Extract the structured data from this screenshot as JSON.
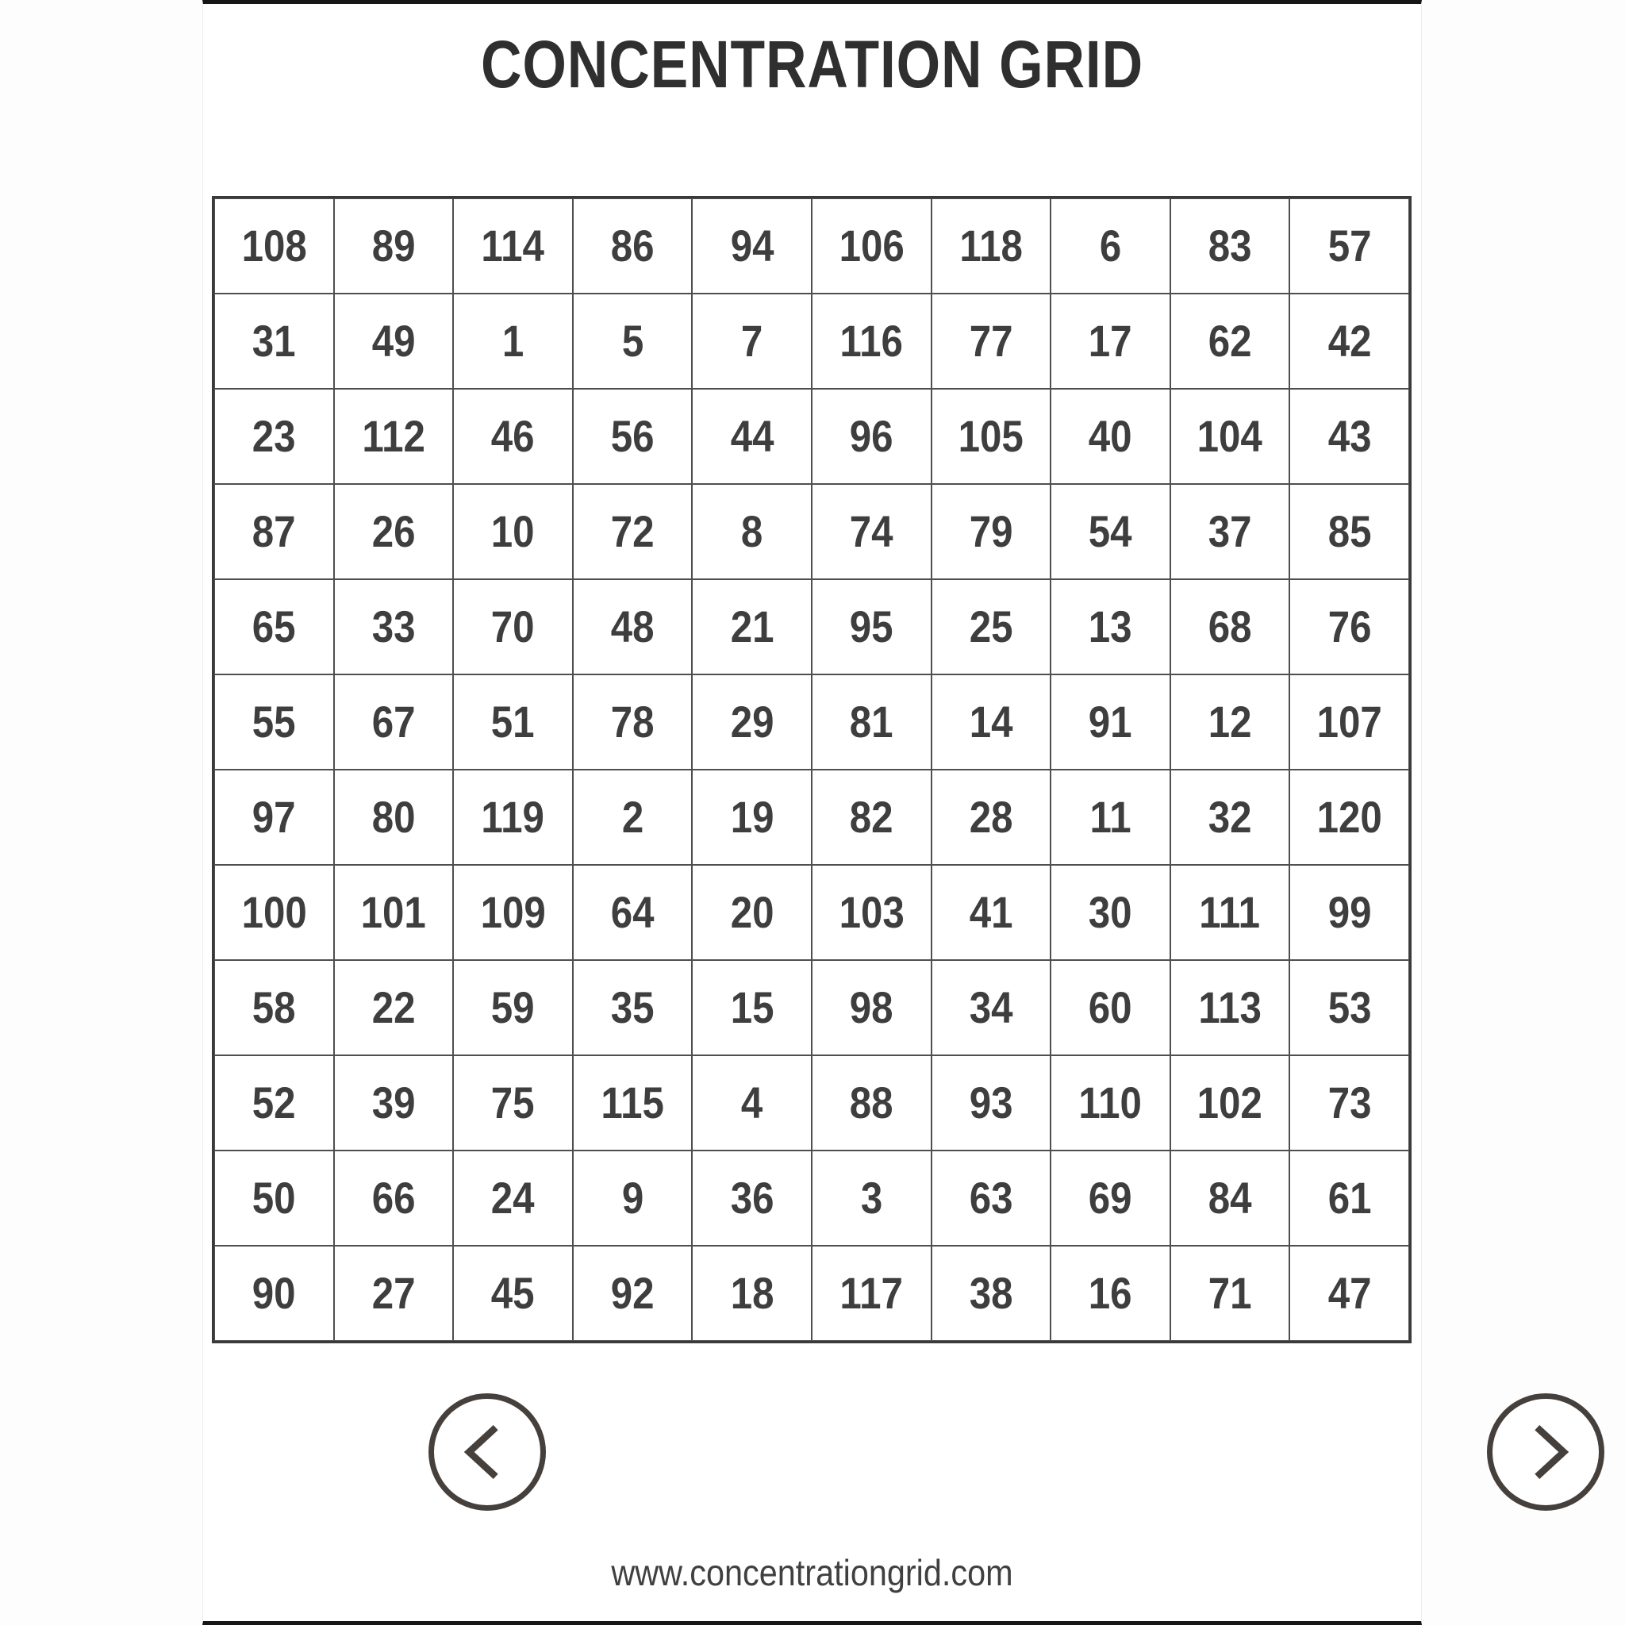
{
  "page": {
    "title": "CONCENTRATION GRID",
    "footer_url": "www.concentrationgrid.com"
  },
  "grid": {
    "columns": 10,
    "rows_count": 12,
    "number_range": [
      1,
      120
    ],
    "rows": [
      [
        108,
        89,
        114,
        86,
        94,
        106,
        118,
        6,
        83,
        57
      ],
      [
        31,
        49,
        1,
        5,
        7,
        116,
        77,
        17,
        62,
        42
      ],
      [
        23,
        112,
        46,
        56,
        44,
        96,
        105,
        40,
        104,
        43
      ],
      [
        87,
        26,
        10,
        72,
        8,
        74,
        79,
        54,
        37,
        85
      ],
      [
        65,
        33,
        70,
        48,
        21,
        95,
        25,
        13,
        68,
        76
      ],
      [
        55,
        67,
        51,
        78,
        29,
        81,
        14,
        91,
        12,
        107
      ],
      [
        97,
        80,
        119,
        2,
        19,
        82,
        28,
        11,
        32,
        120
      ],
      [
        100,
        101,
        109,
        64,
        20,
        103,
        41,
        30,
        111,
        99
      ],
      [
        58,
        22,
        59,
        35,
        15,
        98,
        34,
        60,
        113,
        53
      ],
      [
        52,
        39,
        75,
        115,
        4,
        88,
        93,
        110,
        102,
        73
      ],
      [
        50,
        66,
        24,
        9,
        36,
        3,
        63,
        69,
        84,
        61
      ],
      [
        90,
        27,
        45,
        92,
        18,
        117,
        38,
        16,
        71,
        47
      ]
    ]
  },
  "nav": {
    "prev_icon": "chevron-left-icon",
    "next_icon": "chevron-right-icon"
  },
  "colors": {
    "title_text": "#2f2f2f",
    "cell_number": "#3e3e3e",
    "grid_border": "#3a3a3a",
    "nav_stroke": "#46403d",
    "edge_bar": "#161616",
    "background": "#ffffff"
  }
}
